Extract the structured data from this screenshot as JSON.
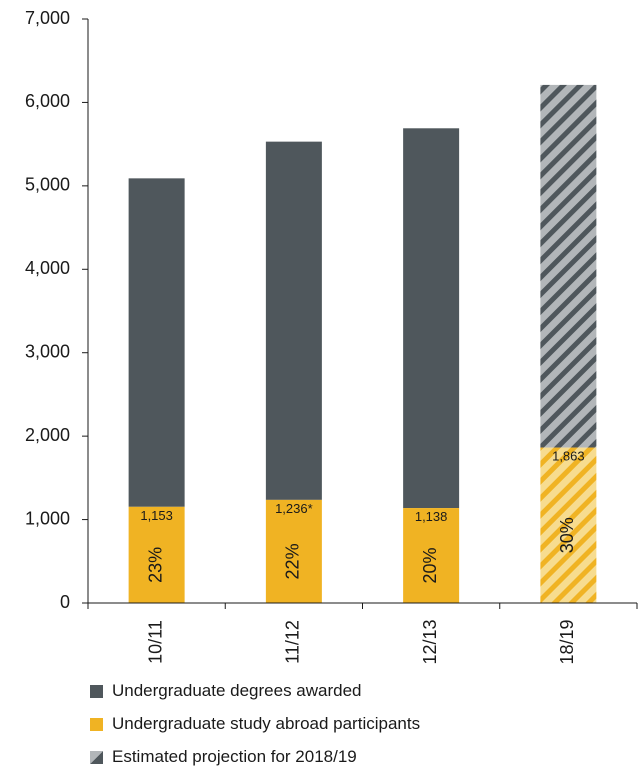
{
  "chart_data": {
    "type": "bar",
    "title": "",
    "xlabel": "",
    "ylabel": "",
    "ylim": [
      0,
      7000
    ],
    "yticks": [
      "0",
      "1,000",
      "2,000",
      "3,000",
      "4,000",
      "5,000",
      "6,000",
      "7,000"
    ],
    "categories": [
      "10/11",
      "11/12",
      "12/13",
      "18/19"
    ],
    "series": [
      {
        "name": "Undergraduate degrees awarded",
        "values": [
          5090,
          5530,
          5690,
          6210
        ],
        "color": "#4f575c"
      },
      {
        "name": "Undergraduate study abroad participants",
        "values": [
          1153,
          1236,
          1138,
          1863
        ],
        "color": "#f0b323"
      }
    ],
    "value_labels": [
      "1,153",
      "1,236*",
      "1,138",
      "1,863"
    ],
    "percent_labels": [
      "23%",
      "22%",
      "20%",
      "30%"
    ],
    "projection": {
      "category": "18/19",
      "legend": "Estimated projection for 2018/19",
      "pattern": "diagonal-hatch"
    },
    "grid": false,
    "legend_position": "bottom-left"
  }
}
